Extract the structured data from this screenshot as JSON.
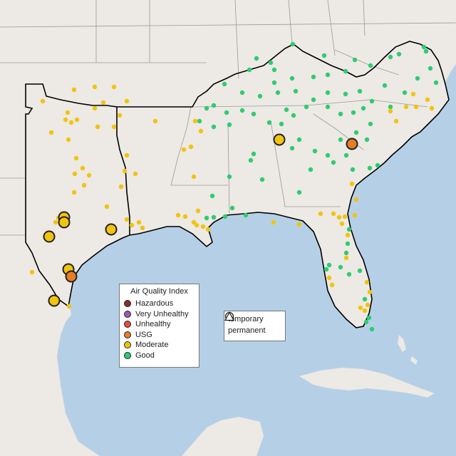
{
  "map": {
    "colors": {
      "land": "#ede9e4",
      "land_outside": "#e4e0db",
      "water": "#b5d0e6",
      "state_border": "#9a9a9a",
      "focus_border": "#000000",
      "site_outline": "#222222"
    },
    "categories": {
      "good": {
        "label": "Good",
        "color": "#2ecc71"
      },
      "moderate": {
        "label": "Moderate",
        "color": "#f1c40f"
      },
      "usg": {
        "label": "USG",
        "color": "#e67e22"
      },
      "unhealthy": {
        "label": "Unhealthy",
        "color": "#e74c3c"
      },
      "very_unhealthy": {
        "label": "Very Unhealthy",
        "color": "#9b59b6"
      },
      "hazardous": {
        "label": "Hazardous",
        "color": "#8e2d2d"
      }
    }
  },
  "legend": {
    "title": "Air Quality Index",
    "items": [
      {
        "label": "Hazardous",
        "color": "#8e2d2d"
      },
      {
        "label": "Very Unhealthy",
        "color": "#9b59b6"
      },
      {
        "label": "Unhealthy",
        "color": "#e74c3c"
      },
      {
        "label": "USG",
        "color": "#e67e22"
      },
      {
        "label": "Moderate",
        "color": "#f1c40f"
      },
      {
        "label": "Good",
        "color": "#2ecc71"
      }
    ]
  },
  "shape_legend": {
    "temporary_label": "temporary",
    "permanent_label": "permanent"
  }
}
